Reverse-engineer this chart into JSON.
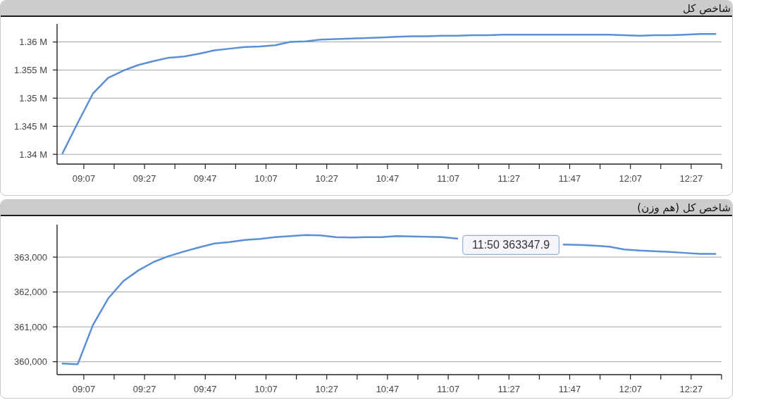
{
  "chart_data": [
    {
      "type": "line",
      "title": "شاخص کل",
      "x": [
        9,
        9.0833,
        9.1667,
        9.25,
        9.3333,
        9.4167,
        9.5,
        9.5833,
        9.6667,
        9.75,
        9.8333,
        9.9167,
        10,
        10.0833,
        10.1667,
        10.25,
        10.3333,
        10.4167,
        10.5,
        10.5833,
        10.6667,
        10.75,
        10.8333,
        10.9167,
        11,
        11.0833,
        11.1667,
        11.25,
        11.3333,
        11.4167,
        11.5,
        11.5833,
        11.6667,
        11.75,
        11.8333,
        11.9167,
        12,
        12.0833,
        12.1667,
        12.25,
        12.3333,
        12.4167,
        12.5,
        12.5833
      ],
      "series": [
        {
          "color": "#5b8fd6",
          "values": [
            1340200,
            1345600,
            1350800,
            1353600,
            1354900,
            1355900,
            1356600,
            1357200,
            1357400,
            1357900,
            1358500,
            1358800,
            1359100,
            1359200,
            1359400,
            1360000,
            1360100,
            1360400,
            1360500,
            1360600,
            1360700,
            1360800,
            1360900,
            1361000,
            1361000,
            1361100,
            1361100,
            1361200,
            1361200,
            1361300,
            1361300,
            1361300,
            1361300,
            1361300,
            1361300,
            1361300,
            1361300,
            1361200,
            1361100,
            1361200,
            1361200,
            1361300,
            1361400,
            1361400
          ]
        }
      ],
      "xlim": [
        8.97,
        12.6167
      ],
      "xticks": [
        {
          "value": 9.1167,
          "label": "09:07"
        },
        {
          "value": 9.2833,
          "label": null
        },
        {
          "value": 9.45,
          "label": "09:27"
        },
        {
          "value": 9.6167,
          "label": null
        },
        {
          "value": 9.7833,
          "label": "09:47"
        },
        {
          "value": 9.95,
          "label": null
        },
        {
          "value": 10.1167,
          "label": "10:07"
        },
        {
          "value": 10.2833,
          "label": null
        },
        {
          "value": 10.45,
          "label": "10:27"
        },
        {
          "value": 10.6167,
          "label": null
        },
        {
          "value": 10.7833,
          "label": "10:47"
        },
        {
          "value": 10.95,
          "label": null
        },
        {
          "value": 11.1167,
          "label": "11:07"
        },
        {
          "value": 11.2833,
          "label": null
        },
        {
          "value": 11.45,
          "label": "11:27"
        },
        {
          "value": 11.6167,
          "label": null
        },
        {
          "value": 11.7833,
          "label": "11:47"
        },
        {
          "value": 11.95,
          "label": null
        },
        {
          "value": 12.1167,
          "label": "12:07"
        },
        {
          "value": 12.2833,
          "label": null
        },
        {
          "value": 12.45,
          "label": "12:27"
        },
        {
          "value": 12.6167,
          "label": null
        }
      ],
      "ylim": [
        1338270,
        1363200
      ],
      "yticks": [
        {
          "value": 1340000,
          "label": "1.34 M"
        },
        {
          "value": 1345000,
          "label": "1.345 M"
        },
        {
          "value": 1350000,
          "label": "1.35 M"
        },
        {
          "value": 1355000,
          "label": "1.355 M"
        },
        {
          "value": 1360000,
          "label": "1.36 M"
        }
      ],
      "grid": "y"
    },
    {
      "type": "line",
      "title": "شاخص کل (هم وزن)",
      "x": [
        9,
        9.0833,
        9.1667,
        9.25,
        9.3333,
        9.4167,
        9.5,
        9.5833,
        9.6667,
        9.75,
        9.8333,
        9.9167,
        10,
        10.0833,
        10.1667,
        10.25,
        10.3333,
        10.4167,
        10.5,
        10.5833,
        10.6667,
        10.75,
        10.8333,
        10.9167,
        11,
        11.0833,
        11.1667,
        11.25,
        11.3333,
        11.4167,
        11.5,
        11.5833,
        11.6667,
        11.75,
        11.8333,
        11.9167,
        12,
        12.0833,
        12.1667,
        12.25,
        12.3333,
        12.4167,
        12.5,
        12.5833
      ],
      "series": [
        {
          "color": "#5b8fd6",
          "values": [
            359950,
            359930,
            361050,
            361810,
            362310,
            362620,
            362860,
            363030,
            363160,
            363280,
            363390,
            363430,
            363490,
            363520,
            363570,
            363600,
            363630,
            363620,
            363570,
            363560,
            363570,
            363570,
            363600,
            363590,
            363580,
            363570,
            363530,
            null,
            null,
            null,
            null,
            null,
            null,
            363360,
            363347.9,
            363330,
            363300,
            363220,
            363190,
            363170,
            363150,
            363120,
            363090,
            363090
          ]
        }
      ],
      "xlim": [
        8.97,
        12.6167
      ],
      "xticks": [
        {
          "value": 9.1167,
          "label": "09:07"
        },
        {
          "value": 9.2833,
          "label": null
        },
        {
          "value": 9.45,
          "label": "09:27"
        },
        {
          "value": 9.6167,
          "label": null
        },
        {
          "value": 9.7833,
          "label": "09:47"
        },
        {
          "value": 9.95,
          "label": null
        },
        {
          "value": 10.1167,
          "label": "10:07"
        },
        {
          "value": 10.2833,
          "label": null
        },
        {
          "value": 10.45,
          "label": "10:27"
        },
        {
          "value": 10.6167,
          "label": null
        },
        {
          "value": 10.7833,
          "label": "10:47"
        },
        {
          "value": 10.95,
          "label": null
        },
        {
          "value": 11.1167,
          "label": "11:07"
        },
        {
          "value": 11.2833,
          "label": null
        },
        {
          "value": 11.45,
          "label": "11:27"
        },
        {
          "value": 11.6167,
          "label": null
        },
        {
          "value": 11.7833,
          "label": "11:47"
        },
        {
          "value": 11.95,
          "label": null
        },
        {
          "value": 12.1167,
          "label": "12:07"
        },
        {
          "value": 12.2833,
          "label": null
        },
        {
          "value": 12.45,
          "label": "12:27"
        },
        {
          "value": 12.6167,
          "label": null
        }
      ],
      "ylim": [
        359630,
        363930
      ],
      "yticks": [
        {
          "value": 360000,
          "label": "360,000"
        },
        {
          "value": 361000,
          "label": "361,000"
        },
        {
          "value": 362000,
          "label": "362,000"
        },
        {
          "value": 363000,
          "label": "363,000"
        }
      ],
      "grid": "y",
      "annotations": [
        {
          "text": "11:50 363347.9",
          "x": 11.8333,
          "y": 363347.9
        }
      ]
    }
  ]
}
